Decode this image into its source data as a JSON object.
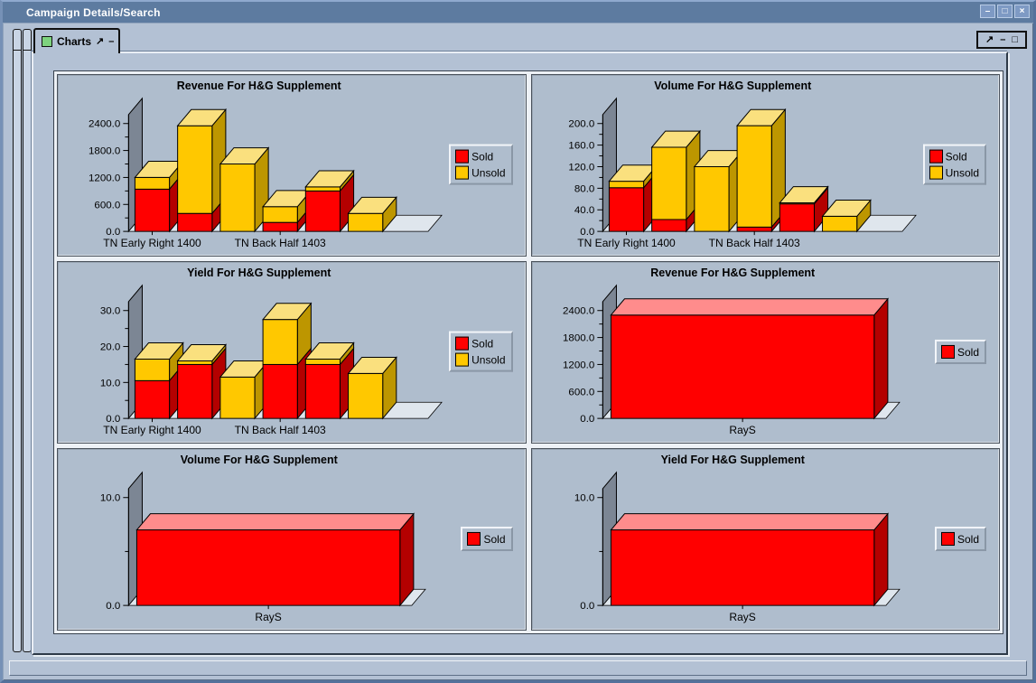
{
  "window": {
    "title": "Campaign Details/Search",
    "buttons": [
      {
        "name": "minimize",
        "glyph": "–"
      },
      {
        "name": "maximize",
        "glyph": "□"
      },
      {
        "name": "close",
        "glyph": "×"
      }
    ]
  },
  "tab": {
    "label": "Charts",
    "icons": {
      "detach": "↗",
      "minimize": "–"
    }
  },
  "frame_controls": [
    {
      "name": "detach",
      "glyph": "↗"
    },
    {
      "name": "minimize",
      "glyph": "–"
    },
    {
      "name": "maximize",
      "glyph": "□"
    }
  ],
  "colors": {
    "titlebar": "#5D7BA0",
    "panel_bg": "#AFBDCD",
    "wall": "#7C8694",
    "floor": "#DFE6ED",
    "sold": {
      "front": "#FF0000",
      "top": "#FF8C8C",
      "side": "#B40000"
    },
    "unsold": {
      "front": "#FFC800",
      "top": "#FAE07E",
      "side": "#BD9600"
    }
  },
  "chart_data": [
    {
      "type": "bar3d-stacked",
      "title": "Revenue For H&G Supplement",
      "legend_position": "right",
      "y_axis": {
        "max_tick": 2400,
        "ticks": [
          {
            "v": 0,
            "label": "0.0"
          },
          {
            "v": 300,
            "label": ""
          },
          {
            "v": 600,
            "label": "600.0"
          },
          {
            "v": 900,
            "label": ""
          },
          {
            "v": 1200,
            "label": "1200.0"
          },
          {
            "v": 1500,
            "label": ""
          },
          {
            "v": 1800,
            "label": "1800.0"
          },
          {
            "v": 2100,
            "label": ""
          },
          {
            "v": 2400,
            "label": "2400.0"
          }
        ]
      },
      "x_categories": [
        {
          "label": "TN Early Right 1400",
          "bar": 0
        },
        {
          "label": "TN Back Half 1403",
          "bar": 3
        }
      ],
      "series": [
        {
          "name": "Sold",
          "key": "sold",
          "values": [
            940,
            400,
            0,
            200,
            900,
            0
          ]
        },
        {
          "name": "Unsold",
          "key": "unsold",
          "values": [
            260,
            1950,
            1500,
            350,
            90,
            400
          ]
        }
      ]
    },
    {
      "type": "bar3d-stacked",
      "title": "Volume For H&G Supplement",
      "legend_position": "right",
      "y_axis": {
        "max_tick": 200,
        "ticks": [
          {
            "v": 0,
            "label": "0.0"
          },
          {
            "v": 20,
            "label": ""
          },
          {
            "v": 40,
            "label": "40.0"
          },
          {
            "v": 60,
            "label": ""
          },
          {
            "v": 80,
            "label": "80.0"
          },
          {
            "v": 100,
            "label": ""
          },
          {
            "v": 120,
            "label": "120.0"
          },
          {
            "v": 140,
            "label": ""
          },
          {
            "v": 160,
            "label": "160.0"
          },
          {
            "v": 180,
            "label": ""
          },
          {
            "v": 200,
            "label": "200.0"
          }
        ]
      },
      "x_categories": [
        {
          "label": "TN Early Right 1400",
          "bar": 0
        },
        {
          "label": "TN Back Half 1403",
          "bar": 3
        }
      ],
      "series": [
        {
          "name": "Sold",
          "key": "sold",
          "values": [
            81,
            22,
            0,
            8,
            51,
            0
          ]
        },
        {
          "name": "Unsold",
          "key": "unsold",
          "values": [
            12,
            134,
            120,
            188,
            2,
            28
          ]
        }
      ]
    },
    {
      "type": "bar3d-stacked",
      "title": "Yield For H&G Supplement",
      "legend_position": "right",
      "y_axis": {
        "max_tick": 30,
        "ticks": [
          {
            "v": 0,
            "label": "0.0"
          },
          {
            "v": 5,
            "label": ""
          },
          {
            "v": 10,
            "label": "10.0"
          },
          {
            "v": 15,
            "label": ""
          },
          {
            "v": 20,
            "label": "20.0"
          },
          {
            "v": 25,
            "label": ""
          },
          {
            "v": 30,
            "label": "30.0"
          }
        ]
      },
      "x_categories": [
        {
          "label": "TN Early Right 1400",
          "bar": 0
        },
        {
          "label": "TN Back Half 1403",
          "bar": 3
        }
      ],
      "series": [
        {
          "name": "Sold",
          "key": "sold",
          "values": [
            10.5,
            15,
            0,
            15,
            15,
            0
          ]
        },
        {
          "name": "Unsold",
          "key": "unsold",
          "values": [
            6,
            1,
            11.5,
            12.5,
            1.5,
            12.5
          ]
        }
      ]
    },
    {
      "type": "bar3d",
      "title": "Revenue For H&G Supplement",
      "legend_position": "right",
      "y_axis": {
        "max_tick": 2400,
        "ticks": [
          {
            "v": 0,
            "label": "0.0"
          },
          {
            "v": 300,
            "label": ""
          },
          {
            "v": 600,
            "label": "600.0"
          },
          {
            "v": 900,
            "label": ""
          },
          {
            "v": 1200,
            "label": "1200.0"
          },
          {
            "v": 1500,
            "label": ""
          },
          {
            "v": 1800,
            "label": "1800.0"
          },
          {
            "v": 2100,
            "label": ""
          },
          {
            "v": 2400,
            "label": "2400.0"
          }
        ]
      },
      "x_categories": [
        {
          "label": "RayS",
          "bar": 0
        }
      ],
      "series": [
        {
          "name": "Sold",
          "key": "sold",
          "values": [
            2300
          ]
        }
      ]
    },
    {
      "type": "bar3d",
      "title": "Volume For H&G Supplement",
      "legend_position": "right",
      "y_axis": {
        "max_tick": 10,
        "ticks": [
          {
            "v": 0,
            "label": "0.0"
          },
          {
            "v": 5,
            "label": ""
          },
          {
            "v": 10,
            "label": "10.0"
          }
        ]
      },
      "x_categories": [
        {
          "label": "RayS",
          "bar": 0
        }
      ],
      "series": [
        {
          "name": "Sold",
          "key": "sold",
          "values": [
            7
          ]
        }
      ]
    },
    {
      "type": "bar3d",
      "title": "Yield For H&G Supplement",
      "legend_position": "right",
      "y_axis": {
        "max_tick": 10,
        "ticks": [
          {
            "v": 0,
            "label": "0.0"
          },
          {
            "v": 5,
            "label": ""
          },
          {
            "v": 10,
            "label": "10.0"
          }
        ]
      },
      "x_categories": [
        {
          "label": "RayS",
          "bar": 0
        }
      ],
      "series": [
        {
          "name": "Sold",
          "key": "sold",
          "values": [
            7
          ]
        }
      ]
    }
  ]
}
